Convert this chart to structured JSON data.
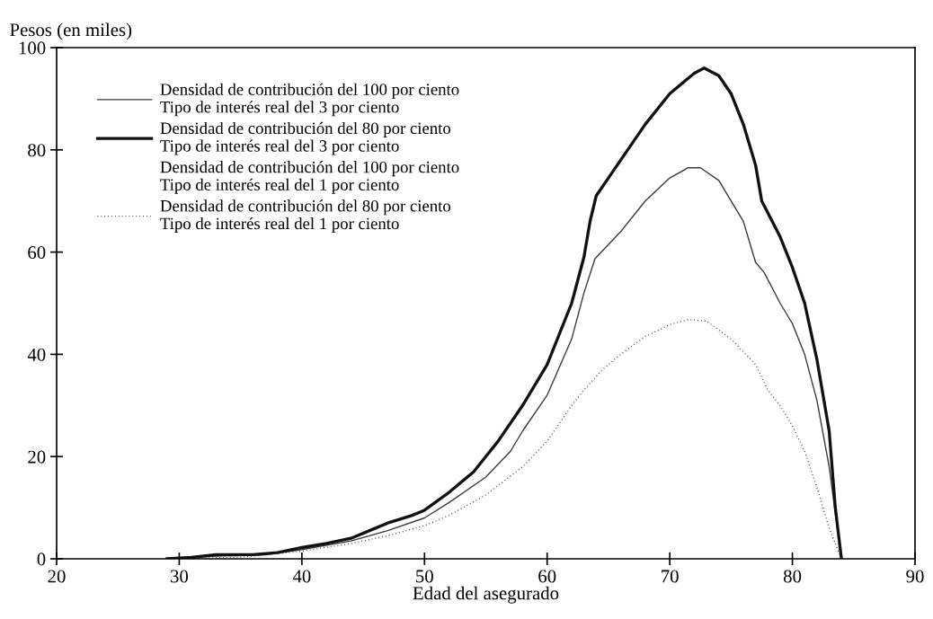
{
  "chart_data": {
    "type": "line",
    "xlabel": "Edad del asegurado",
    "ylabel": "Pesos (en miles)",
    "xlim": [
      20,
      90
    ],
    "xticks": [
      20,
      30,
      40,
      50,
      60,
      70,
      80,
      90
    ],
    "ylim": [
      0,
      100
    ],
    "yticks": [
      0,
      20,
      40,
      60,
      80,
      100
    ],
    "grid": false,
    "legend": "top left",
    "marker": "none",
    "series": [
      {
        "name": "Densidad de contribución del 100 por ciento\nTipo de interés real del 3 por ciento",
        "color": "#3a3a3a",
        "line_style": "solid",
        "x": [
          29,
          33,
          37,
          40,
          44,
          47,
          50,
          52,
          55,
          57,
          58,
          60,
          62,
          63,
          63.9,
          66,
          68,
          70,
          71.5,
          72.5,
          74,
          76,
          77,
          77.7,
          79,
          80,
          81,
          82,
          83,
          84
        ],
        "values": [
          0,
          0.5,
          0.8,
          1.8,
          3.5,
          5.5,
          8,
          11,
          16,
          21,
          25,
          32,
          43,
          52,
          58.7,
          64,
          70,
          74.5,
          76.5,
          76.5,
          74,
          66,
          58,
          56,
          50,
          46,
          40,
          31,
          18,
          0
        ]
      },
      {
        "name": "Densidad de contribución del 80 por ciento\nTipo de interés real del 3 por ciento",
        "color": "#111111",
        "line_style": "solid",
        "x": [
          29,
          31,
          33,
          36,
          38,
          40,
          42,
          44,
          46,
          47,
          49,
          50,
          52,
          54,
          56,
          58,
          60,
          62,
          63,
          63.5,
          64,
          66,
          68,
          70,
          72,
          72.8,
          74,
          75,
          76,
          77,
          77.5,
          79,
          80,
          81,
          82,
          83,
          83.5,
          84
        ],
        "values": [
          0,
          0.3,
          0.8,
          0.8,
          1.2,
          2.2,
          3,
          4,
          6,
          7,
          8.5,
          9.5,
          13,
          17,
          23,
          30,
          38,
          50,
          59,
          66,
          71,
          78,
          85,
          91,
          95,
          96,
          94.5,
          91,
          85,
          77,
          70,
          63,
          57,
          50,
          39,
          25,
          10,
          0
        ]
      },
      {
        "name": "Densidad de contribución del 100 por ciento\nTipo de interés real del 1 por ciento",
        "line_style": "none"
      },
      {
        "name": "Densidad de contribución del 80 por ciento\nTipo de interés real del 1 por ciento",
        "color": "#333333",
        "line_style": "dotted",
        "x": [
          29,
          35,
          38,
          40,
          44,
          47,
          50,
          52,
          55,
          58,
          60,
          62,
          63,
          64.5,
          66,
          68,
          70,
          71.5,
          73,
          75,
          77,
          78,
          79,
          80,
          81,
          82,
          83,
          84
        ],
        "values": [
          0,
          0.3,
          1,
          1.5,
          3,
          4.5,
          6.5,
          8.5,
          12.5,
          18,
          23,
          30,
          33,
          37,
          40,
          43.5,
          45.8,
          46.8,
          46.5,
          43,
          38,
          33,
          30,
          26,
          21,
          14,
          6,
          0
        ]
      }
    ]
  }
}
